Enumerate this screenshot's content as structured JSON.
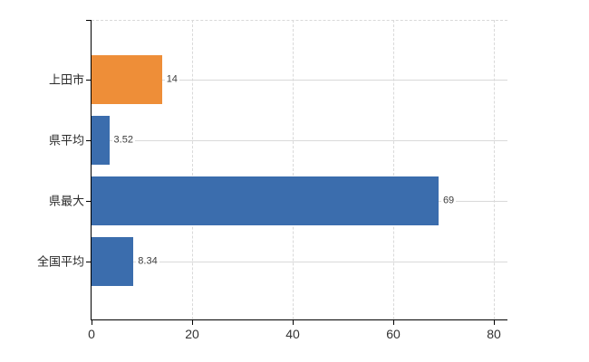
{
  "chart_data": {
    "type": "bar",
    "orientation": "horizontal",
    "title": "",
    "xlabel": "",
    "ylabel": "",
    "legend": "none",
    "categories": [
      "上田市",
      "県平均",
      "県最大",
      "全国平均"
    ],
    "values": [
      14,
      3.52,
      69,
      8.34
    ],
    "value_labels": [
      "14",
      "3.52",
      "69",
      "8.34"
    ],
    "bar_colors": [
      "#EE8E38",
      "#3B6DAD",
      "#3B6DAD",
      "#3B6DAD"
    ],
    "x_tick_values": [
      0,
      20,
      40,
      60,
      80
    ],
    "x_tick_labels": [
      "0",
      "20",
      "40",
      "60",
      "80"
    ],
    "xlim": [
      0,
      82.7
    ],
    "grid": {
      "vertical_gridlines": "dashed",
      "row_guides": "solid",
      "plot_top_border": "dashed"
    }
  },
  "colors": {
    "bar_orange": "#EE8E38",
    "bar_blue": "#3B6DAD",
    "gridline": "#d9d9d9",
    "axis": "#000000",
    "tick_text": "#333333",
    "value_text": "#3c3c3c",
    "category_text": "#2b2b2b",
    "background": "#ffffff"
  }
}
